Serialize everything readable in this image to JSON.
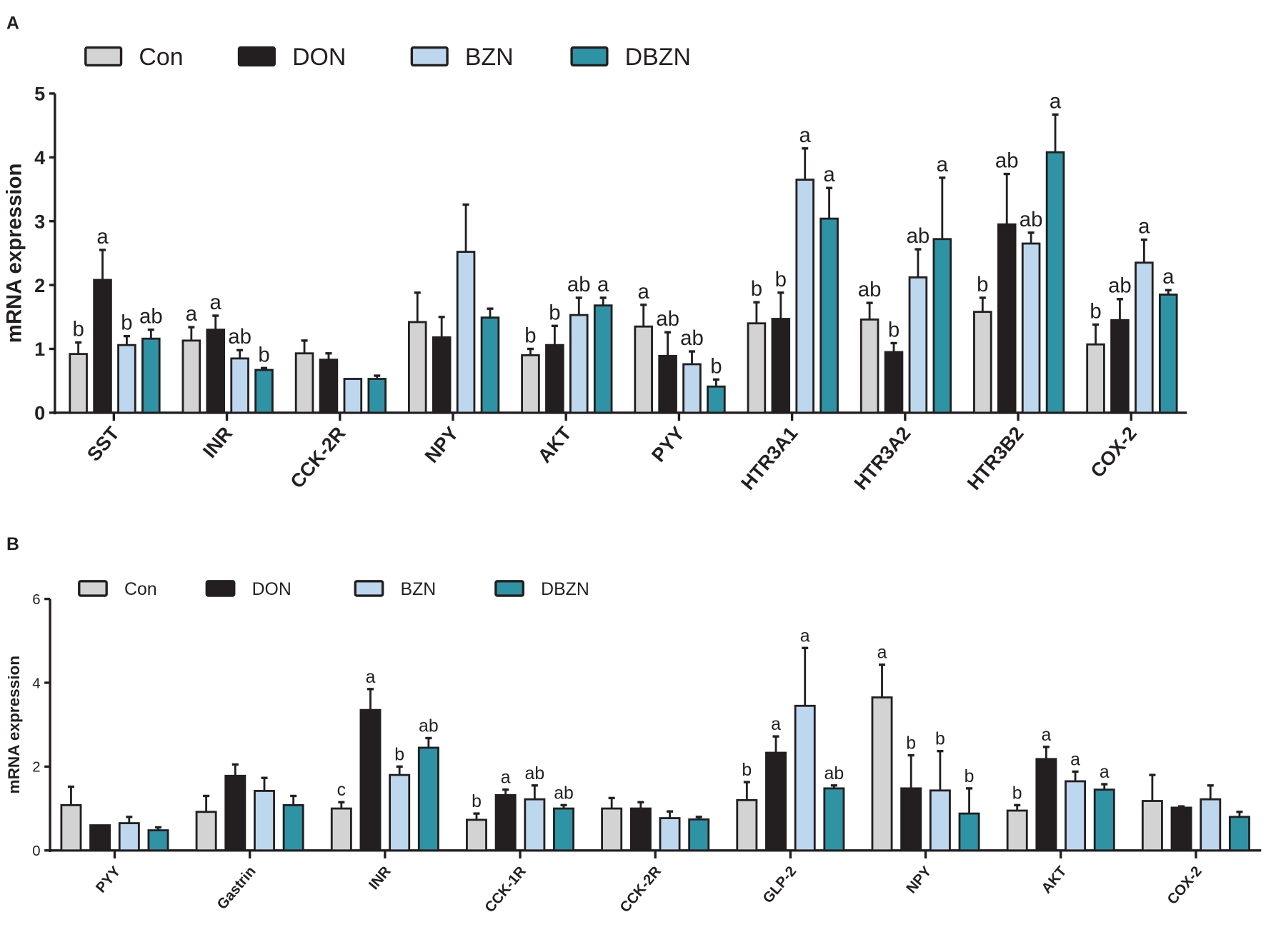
{
  "chart_data": [
    {
      "type": "bar",
      "panel": "A",
      "ylabel": "mRNA expression",
      "ylim": [
        0,
        5
      ],
      "yticks": [
        "0",
        "1",
        "2",
        "3",
        "4",
        "5"
      ],
      "legend": [
        "Con",
        "DON",
        "BZN",
        "DBZN"
      ],
      "legend_position": "top-left",
      "colors": [
        "#d3d3d3",
        "#231f20",
        "#bdd7ee",
        "#2e93a5"
      ],
      "categories": [
        "SST",
        "INR",
        "CCK-2R",
        "NPY",
        "AKT",
        "PYY",
        "HTR3A1",
        "HTR3A2",
        "HTR3B2",
        "COX-2"
      ],
      "series": [
        {
          "name": "Con",
          "values": [
            0.92,
            1.13,
            0.93,
            1.42,
            0.9,
            1.35,
            1.4,
            1.46,
            1.58,
            1.07
          ],
          "error": [
            0.18,
            0.21,
            0.2,
            0.46,
            0.1,
            0.34,
            0.33,
            0.26,
            0.22,
            0.31
          ],
          "letters": [
            "b",
            "a",
            "",
            "",
            "b",
            "a",
            "b",
            "ab",
            "b",
            "b"
          ]
        },
        {
          "name": "DON",
          "values": [
            2.08,
            1.3,
            0.83,
            1.18,
            1.06,
            0.89,
            1.47,
            0.95,
            2.95,
            1.45
          ],
          "error": [
            0.47,
            0.22,
            0.1,
            0.32,
            0.3,
            0.37,
            0.41,
            0.14,
            0.79,
            0.33
          ],
          "letters": [
            "a",
            "a",
            "",
            "",
            "b",
            "ab",
            "b",
            "b",
            "ab",
            "ab"
          ]
        },
        {
          "name": "BZN",
          "values": [
            1.06,
            0.85,
            0.53,
            2.52,
            1.53,
            0.76,
            3.65,
            2.12,
            2.65,
            2.35
          ],
          "error": [
            0.14,
            0.13,
            0.0,
            0.74,
            0.27,
            0.2,
            0.49,
            0.44,
            0.17,
            0.36
          ],
          "letters": [
            "b",
            "ab",
            "",
            "",
            "ab",
            "ab",
            "a",
            "ab",
            "ab",
            "a"
          ]
        },
        {
          "name": "DBZN",
          "values": [
            1.16,
            0.67,
            0.53,
            1.49,
            1.68,
            0.41,
            3.04,
            2.72,
            4.08,
            1.85
          ],
          "error": [
            0.14,
            0.03,
            0.05,
            0.14,
            0.12,
            0.11,
            0.48,
            0.96,
            0.59,
            0.07
          ],
          "letters": [
            "ab",
            "b",
            "",
            "",
            "a",
            "b",
            "a",
            "a",
            "a",
            "a"
          ]
        }
      ]
    },
    {
      "type": "bar",
      "panel": "B",
      "ylabel": "mRNA expression",
      "ylim": [
        0,
        6
      ],
      "yticks": [
        "0",
        "2",
        "4",
        "6"
      ],
      "legend": [
        "Con",
        "DON",
        "BZN",
        "DBZN"
      ],
      "legend_position": "top-left",
      "colors": [
        "#d3d3d3",
        "#231f20",
        "#bdd7ee",
        "#2e93a5"
      ],
      "categories": [
        "PYY",
        "Gastrin",
        "INR",
        "CCK-1R",
        "CCK-2R",
        "GLP-2",
        "NPY",
        "AKT",
        "COX-2"
      ],
      "series": [
        {
          "name": "Con",
          "values": [
            1.08,
            0.92,
            1.0,
            0.73,
            1.0,
            1.2,
            3.65,
            0.95,
            1.18
          ],
          "error": [
            0.44,
            0.38,
            0.15,
            0.15,
            0.25,
            0.43,
            0.78,
            0.13,
            0.62
          ],
          "letters": [
            "",
            "",
            "c",
            "b",
            "",
            "b",
            "a",
            "b",
            ""
          ]
        },
        {
          "name": "DON",
          "values": [
            0.6,
            1.78,
            3.35,
            1.32,
            1.0,
            2.33,
            1.48,
            2.18,
            1.02
          ],
          "error": [
            0.0,
            0.27,
            0.5,
            0.13,
            0.15,
            0.39,
            0.79,
            0.29,
            0.03
          ],
          "letters": [
            "",
            "",
            "a",
            "a",
            "",
            "a",
            "b",
            "a",
            ""
          ]
        },
        {
          "name": "BZN",
          "values": [
            0.65,
            1.42,
            1.8,
            1.22,
            0.77,
            3.45,
            1.43,
            1.65,
            1.22
          ],
          "error": [
            0.15,
            0.31,
            0.2,
            0.33,
            0.16,
            1.38,
            0.94,
            0.23,
            0.33
          ],
          "letters": [
            "",
            "",
            "b",
            "ab",
            "",
            "a",
            "b",
            "a",
            ""
          ]
        },
        {
          "name": "DBZN",
          "values": [
            0.48,
            1.08,
            2.45,
            1.0,
            0.74,
            1.48,
            0.88,
            1.45,
            0.8
          ],
          "error": [
            0.07,
            0.22,
            0.23,
            0.08,
            0.06,
            0.07,
            0.6,
            0.13,
            0.12
          ],
          "letters": [
            "",
            "",
            "ab",
            "ab",
            "",
            "ab",
            "b",
            "a",
            ""
          ]
        }
      ]
    }
  ]
}
